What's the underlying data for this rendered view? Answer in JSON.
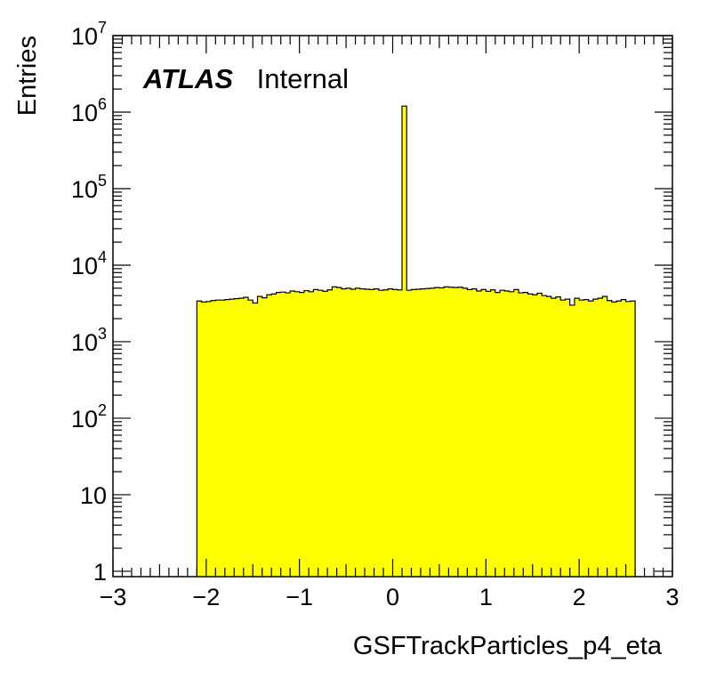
{
  "chart_data": {
    "type": "bar",
    "title": "",
    "xlabel": "GSFTrackParticles_p4_eta",
    "ylabel": "Entries",
    "xlim": [
      -3,
      3
    ],
    "ylim": [
      0.85,
      10000000
    ],
    "yscale": "log",
    "x_ticks": [
      -3,
      -2,
      -1,
      0,
      1,
      2,
      3
    ],
    "x_tick_labels": [
      "−3",
      "−2",
      "−1",
      "0",
      "1",
      "2",
      "3"
    ],
    "y_ticks": [
      {
        "value": 1,
        "base": "1",
        "exp": ""
      },
      {
        "value": 10,
        "base": "10",
        "exp": ""
      },
      {
        "value": 100,
        "base": "10",
        "exp": "2"
      },
      {
        "value": 1000,
        "base": "10",
        "exp": "3"
      },
      {
        "value": 10000,
        "base": "10",
        "exp": "4"
      },
      {
        "value": 100000,
        "base": "10",
        "exp": "5"
      },
      {
        "value": 1000000,
        "base": "10",
        "exp": "6"
      },
      {
        "value": 10000000,
        "base": "10",
        "exp": "7"
      }
    ],
    "bin_width": 0.05,
    "bins_start": -2.1,
    "values": [
      3400,
      3300,
      3350,
      3450,
      3500,
      3500,
      3550,
      3600,
      3650,
      3700,
      3800,
      3500,
      3200,
      3900,
      3750,
      4100,
      4200,
      4400,
      4450,
      4350,
      4600,
      4500,
      4400,
      4650,
      4500,
      4800,
      4700,
      4550,
      4750,
      5200,
      5100,
      4900,
      5000,
      4850,
      5000,
      4900,
      4850,
      4800,
      4900,
      4700,
      4750,
      4900,
      4800,
      4750,
      1200000,
      4700,
      4800,
      4850,
      4900,
      4950,
      5000,
      5100,
      5050,
      5200,
      5150,
      5100,
      5150,
      5000,
      4800,
      4900,
      4600,
      4800,
      4550,
      4750,
      4400,
      4700,
      4600,
      4500,
      4800,
      4350,
      4400,
      4200,
      4100,
      4300,
      4000,
      3900,
      3700,
      3850,
      3500,
      3600,
      3000,
      3700,
      3500,
      3550,
      3400,
      3600,
      3700,
      3900,
      3450,
      3300,
      3400,
      3550,
      3350,
      3400
    ],
    "fill_color": "#ffff00",
    "line_color": "#000000",
    "grid": false,
    "legend": "none"
  },
  "annotation": {
    "brand": "ATLAS",
    "label": "Internal"
  }
}
